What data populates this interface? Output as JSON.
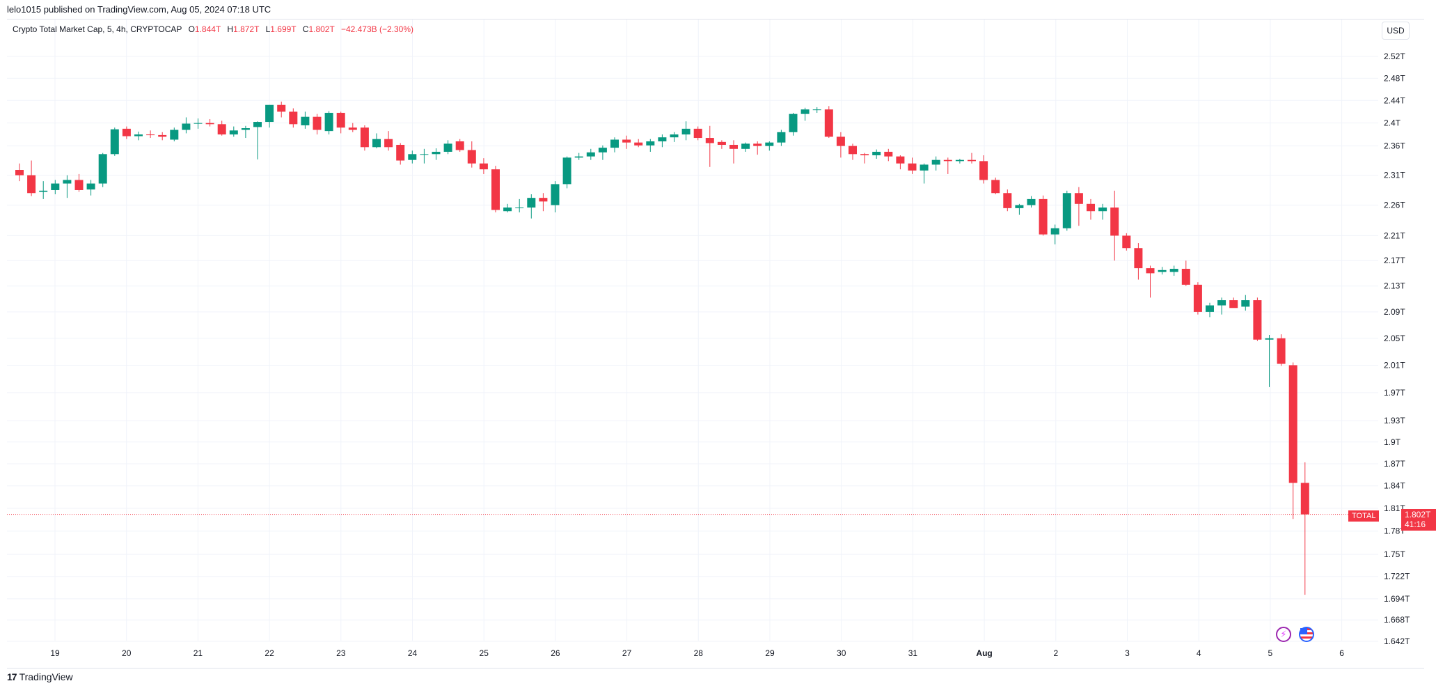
{
  "header": {
    "published": "lelo1015 published on TradingView.com, Aug 05, 2024 07:18 UTC"
  },
  "legend": {
    "symbol": "Crypto Total Market Cap, 5, 4h, CRYPTOCAP",
    "open_label": "O",
    "open": "1.844T",
    "high_label": "H",
    "high": "1.872T",
    "low_label": "L",
    "low": "1.699T",
    "close_label": "C",
    "close": "1.802T",
    "change": "−42.473B (−2.30%)"
  },
  "currency_button": "USD",
  "last_price": {
    "symbol": "TOTAL",
    "price": "1.802T",
    "countdown": "41:16"
  },
  "footer": {
    "logo_mark": "17",
    "logo_text": "TradingView"
  },
  "icons": {
    "event": "lightning-icon",
    "country": "us-flag-icon"
  },
  "colors": {
    "up": "#089981",
    "down": "#f23645",
    "grid": "#f0f3fa",
    "text": "#131722"
  },
  "chart_data": {
    "type": "candlestick",
    "title": "Crypto Total Market Cap, 5, 4h, CRYPTOCAP",
    "interval": "4h",
    "y_ticks": [
      2.52,
      2.48,
      2.44,
      2.4,
      2.36,
      2.31,
      2.26,
      2.21,
      2.17,
      2.13,
      2.09,
      2.05,
      2.01,
      1.97,
      1.93,
      1.9,
      1.87,
      1.84,
      1.81,
      1.78,
      1.75,
      1.722,
      1.694,
      1.668,
      1.642
    ],
    "y_tick_labels": [
      "2.52T",
      "2.48T",
      "2.44T",
      "2.4T",
      "2.36T",
      "2.31T",
      "2.26T",
      "2.21T",
      "2.17T",
      "2.13T",
      "2.09T",
      "2.05T",
      "2.01T",
      "1.97T",
      "1.93T",
      "1.9T",
      "1.87T",
      "1.84T",
      "1.81T",
      "1.78T",
      "1.75T",
      "1.722T",
      "1.694T",
      "1.668T",
      "1.642T"
    ],
    "x_labels": [
      "19",
      "20",
      "21",
      "22",
      "23",
      "24",
      "25",
      "26",
      "27",
      "28",
      "29",
      "30",
      "31",
      "Aug",
      "2",
      "3",
      "4",
      "5",
      "6"
    ],
    "last_price": 1.802,
    "candles": [
      [
        2.319,
        2.33,
        2.3,
        2.31
      ],
      [
        2.31,
        2.335,
        2.275,
        2.28
      ],
      [
        2.282,
        2.3,
        2.27,
        2.284
      ],
      [
        2.285,
        2.302,
        2.278,
        2.296
      ],
      [
        2.296,
        2.31,
        2.272,
        2.302
      ],
      [
        2.302,
        2.312,
        2.282,
        2.285
      ],
      [
        2.286,
        2.302,
        2.276,
        2.296
      ],
      [
        2.296,
        2.348,
        2.29,
        2.346
      ],
      [
        2.346,
        2.392,
        2.343,
        2.389
      ],
      [
        2.39,
        2.394,
        2.372,
        2.377
      ],
      [
        2.377,
        2.385,
        2.37,
        2.38
      ],
      [
        2.38,
        2.387,
        2.374,
        2.379
      ],
      [
        2.379,
        2.384,
        2.37,
        2.376
      ],
      [
        2.371,
        2.392,
        2.368,
        2.388
      ],
      [
        2.388,
        2.41,
        2.382,
        2.399
      ],
      [
        2.4,
        2.408,
        2.39,
        2.4
      ],
      [
        2.4,
        2.407,
        2.394,
        2.398
      ],
      [
        2.398,
        2.404,
        2.378,
        2.38
      ],
      [
        2.38,
        2.394,
        2.376,
        2.387
      ],
      [
        2.388,
        2.395,
        2.374,
        2.391
      ],
      [
        2.393,
        2.403,
        2.337,
        2.402
      ],
      [
        2.402,
        2.432,
        2.392,
        2.432
      ],
      [
        2.432,
        2.438,
        2.41,
        2.42
      ],
      [
        2.42,
        2.426,
        2.392,
        2.398
      ],
      [
        2.396,
        2.42,
        2.39,
        2.411
      ],
      [
        2.411,
        2.416,
        2.38,
        2.388
      ],
      [
        2.386,
        2.421,
        2.38,
        2.418
      ],
      [
        2.418,
        2.42,
        2.382,
        2.392
      ],
      [
        2.392,
        2.4,
        2.384,
        2.388
      ],
      [
        2.392,
        2.396,
        2.352,
        2.358
      ],
      [
        2.358,
        2.382,
        2.356,
        2.372
      ],
      [
        2.372,
        2.386,
        2.352,
        2.358
      ],
      [
        2.362,
        2.365,
        2.328,
        2.335
      ],
      [
        2.336,
        2.352,
        2.33,
        2.346
      ],
      [
        2.346,
        2.355,
        2.33,
        2.346
      ],
      [
        2.346,
        2.356,
        2.336,
        2.35
      ],
      [
        2.35,
        2.37,
        2.346,
        2.364
      ],
      [
        2.368,
        2.372,
        2.35,
        2.353
      ],
      [
        2.353,
        2.368,
        2.323,
        2.33
      ],
      [
        2.33,
        2.339,
        2.312,
        2.32
      ],
      [
        2.32,
        2.326,
        2.248,
        2.252
      ],
      [
        2.25,
        2.262,
        2.248,
        2.256
      ],
      [
        2.256,
        2.27,
        2.248,
        2.256
      ],
      [
        2.256,
        2.278,
        2.238,
        2.272
      ],
      [
        2.272,
        2.28,
        2.25,
        2.266
      ],
      [
        2.26,
        2.3,
        2.248,
        2.295
      ],
      [
        2.295,
        2.342,
        2.288,
        2.34
      ],
      [
        2.34,
        2.348,
        2.336,
        2.342
      ],
      [
        2.342,
        2.355,
        2.336,
        2.349
      ],
      [
        2.349,
        2.361,
        2.336,
        2.357
      ],
      [
        2.357,
        2.375,
        2.349,
        2.371
      ],
      [
        2.371,
        2.378,
        2.355,
        2.366
      ],
      [
        2.366,
        2.372,
        2.358,
        2.361
      ],
      [
        2.361,
        2.372,
        2.35,
        2.368
      ],
      [
        2.368,
        2.38,
        2.358,
        2.375
      ],
      [
        2.375,
        2.384,
        2.367,
        2.38
      ],
      [
        2.38,
        2.403,
        2.37,
        2.39
      ],
      [
        2.39,
        2.394,
        2.37,
        2.374
      ],
      [
        2.374,
        2.395,
        2.324,
        2.365
      ],
      [
        2.367,
        2.37,
        2.355,
        2.362
      ],
      [
        2.362,
        2.37,
        2.33,
        2.355
      ],
      [
        2.355,
        2.366,
        2.35,
        2.364
      ],
      [
        2.364,
        2.368,
        2.345,
        2.36
      ],
      [
        2.36,
        2.368,
        2.352,
        2.366
      ],
      [
        2.366,
        2.388,
        2.36,
        2.384
      ],
      [
        2.384,
        2.418,
        2.378,
        2.416
      ],
      [
        2.416,
        2.427,
        2.404,
        2.424
      ],
      [
        2.424,
        2.428,
        2.418,
        2.424
      ],
      [
        2.424,
        2.43,
        2.374,
        2.376
      ],
      [
        2.376,
        2.384,
        2.34,
        2.36
      ],
      [
        2.36,
        2.364,
        2.336,
        2.346
      ],
      [
        2.346,
        2.348,
        2.33,
        2.344
      ],
      [
        2.344,
        2.354,
        2.338,
        2.35
      ],
      [
        2.35,
        2.355,
        2.334,
        2.342
      ],
      [
        2.342,
        2.344,
        2.32,
        2.33
      ],
      [
        2.33,
        2.34,
        2.312,
        2.318
      ],
      [
        2.318,
        2.33,
        2.296,
        2.328
      ],
      [
        2.328,
        2.342,
        2.318,
        2.336
      ],
      [
        2.336,
        2.34,
        2.312,
        2.334
      ],
      [
        2.334,
        2.338,
        2.33,
        2.336
      ],
      [
        2.336,
        2.348,
        2.33,
        2.334
      ],
      [
        2.334,
        2.344,
        2.296,
        2.302
      ],
      [
        2.302,
        2.306,
        2.278,
        2.28
      ],
      [
        2.28,
        2.286,
        2.25,
        2.255
      ],
      [
        2.255,
        2.262,
        2.244,
        2.26
      ],
      [
        2.26,
        2.275,
        2.256,
        2.27
      ],
      [
        2.27,
        2.276,
        2.21,
        2.212
      ],
      [
        2.212,
        2.228,
        2.196,
        2.222
      ],
      [
        2.222,
        2.284,
        2.218,
        2.28
      ],
      [
        2.28,
        2.29,
        2.226,
        2.262
      ],
      [
        2.262,
        2.27,
        2.236,
        2.25
      ],
      [
        2.25,
        2.262,
        2.236,
        2.256
      ],
      [
        2.256,
        2.284,
        2.17,
        2.21
      ],
      [
        2.21,
        2.214,
        2.186,
        2.19
      ],
      [
        2.19,
        2.198,
        2.14,
        2.158
      ],
      [
        2.158,
        2.162,
        2.112,
        2.15
      ],
      [
        2.152,
        2.16,
        2.148,
        2.155
      ],
      [
        2.152,
        2.162,
        2.146,
        2.157
      ],
      [
        2.157,
        2.17,
        2.13,
        2.132
      ],
      [
        2.132,
        2.136,
        2.086,
        2.09
      ],
      [
        2.09,
        2.104,
        2.082,
        2.1
      ],
      [
        2.1,
        2.112,
        2.086,
        2.108
      ],
      [
        2.108,
        2.112,
        2.098,
        2.096
      ],
      [
        2.098,
        2.116,
        2.092,
        2.108
      ],
      [
        2.108,
        2.112,
        2.046,
        2.048
      ],
      [
        2.048,
        2.055,
        1.978,
        2.05
      ],
      [
        2.05,
        2.056,
        2.009,
        2.012
      ],
      [
        2.01,
        2.014,
        1.796,
        1.844
      ],
      [
        1.844,
        1.872,
        1.699,
        1.802
      ]
    ]
  }
}
